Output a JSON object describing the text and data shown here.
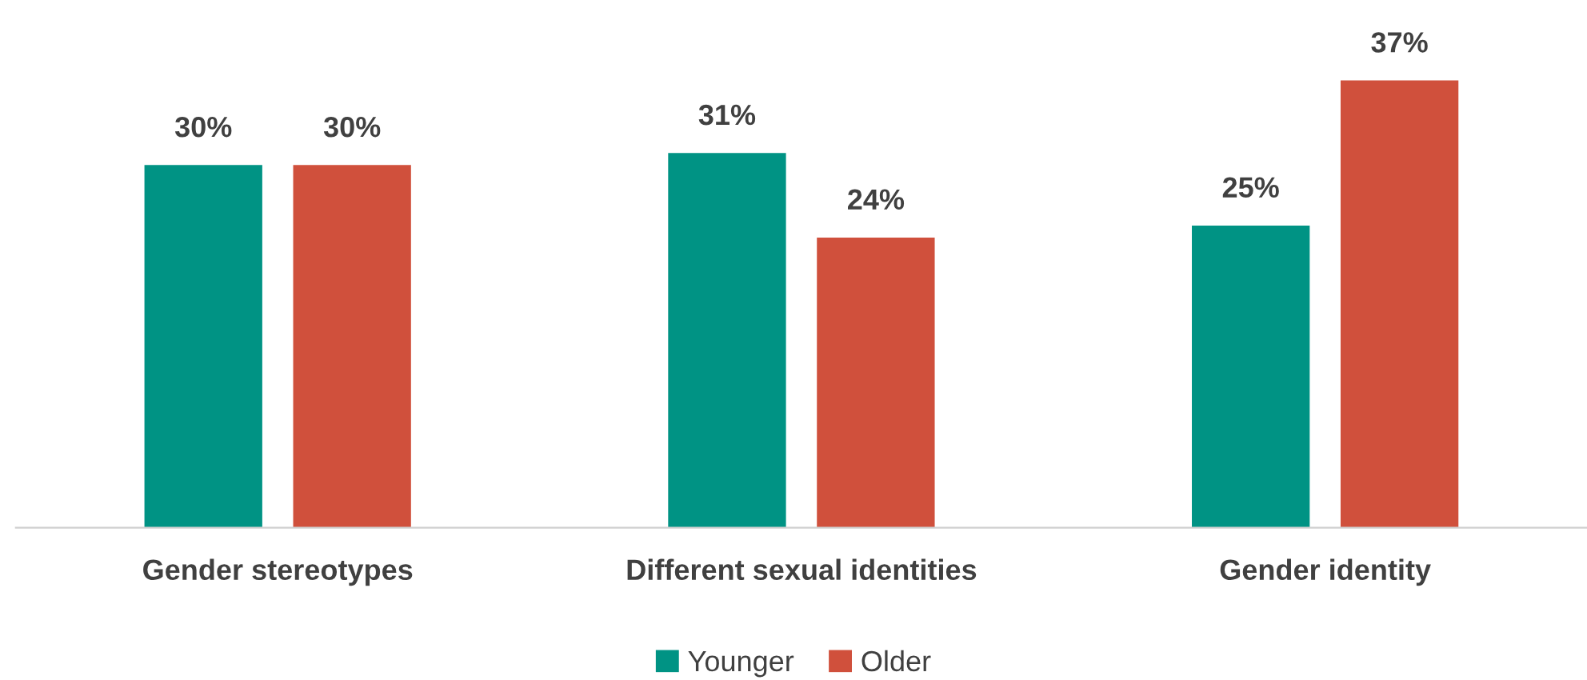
{
  "chart_data": {
    "type": "bar",
    "categories": [
      "Gender stereotypes",
      "Different sexual identities",
      "Gender identity"
    ],
    "series": [
      {
        "name": "Younger",
        "color": "#009384",
        "values": [
          30,
          31,
          25
        ],
        "value_labels": [
          "30%",
          "31%",
          "25%"
        ]
      },
      {
        "name": "Older",
        "color": "#d0503c",
        "values": [
          30,
          24,
          37
        ],
        "value_labels": [
          "30%",
          "24%",
          "37%"
        ]
      }
    ],
    "legend": "bottom",
    "grid": false,
    "tick_labels": "x"
  }
}
